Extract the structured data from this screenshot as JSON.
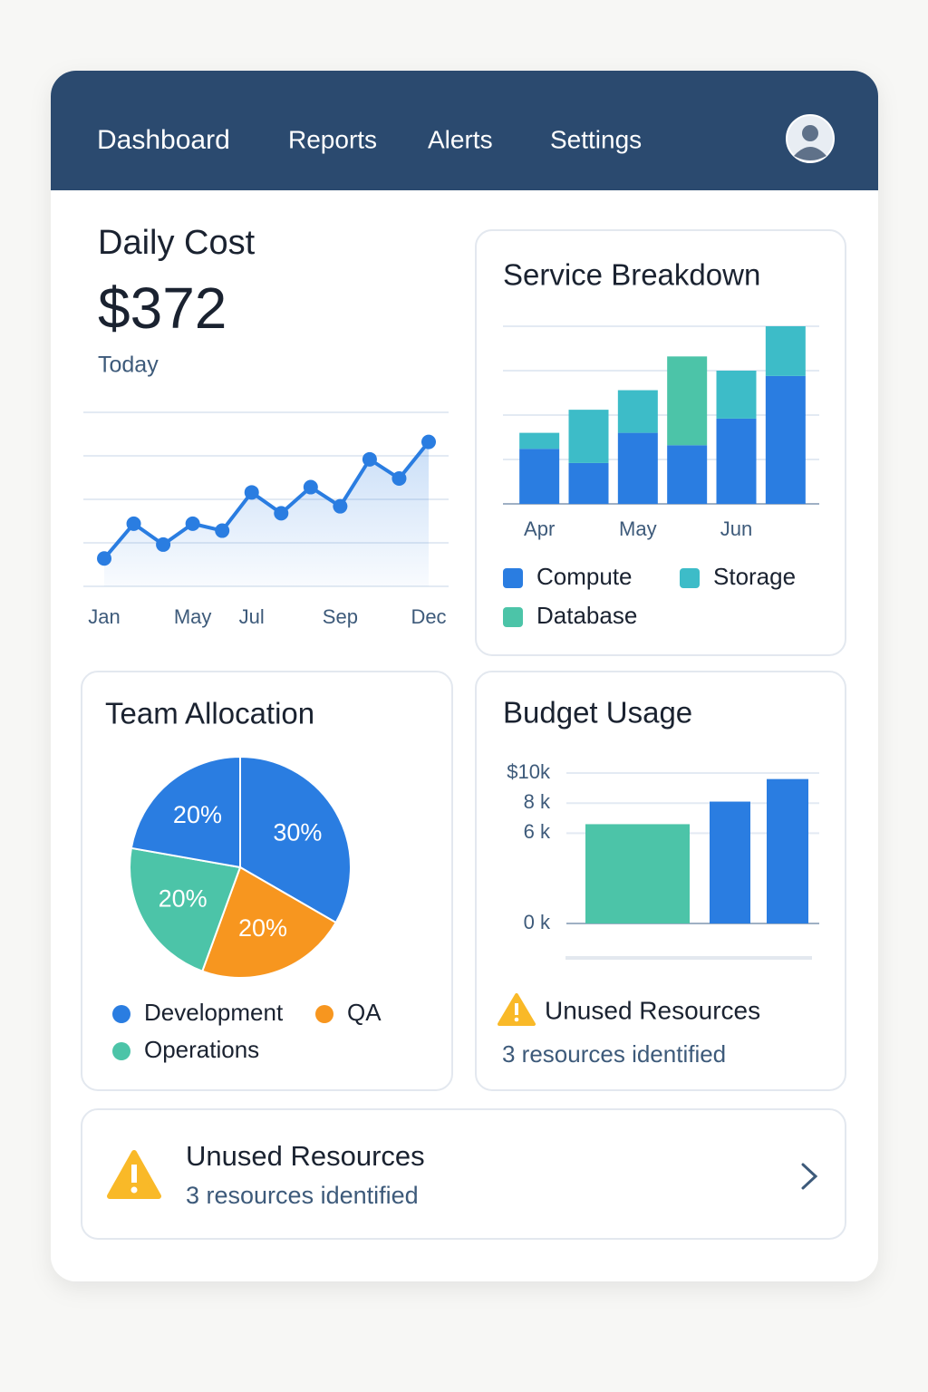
{
  "nav": {
    "items": [
      "Dashboard",
      "Reports",
      "Alerts",
      "Settings"
    ]
  },
  "daily_cost": {
    "amount": "$372",
    "period": "Today"
  },
  "chart_data": [
    {
      "type": "line",
      "title": "Daily Cost",
      "categories": [
        "Jan",
        null,
        null,
        "May",
        null,
        "Jul",
        null,
        null,
        "Sep",
        null,
        null,
        "Dec"
      ],
      "values": [
        16,
        36,
        24,
        36,
        32,
        54,
        42,
        57,
        46,
        73,
        62,
        83
      ],
      "color": "#2a7de1",
      "ylim": [
        0,
        100
      ],
      "yticks": [
        0,
        25,
        50,
        75,
        100
      ],
      "grid": true
    },
    {
      "type": "stacked_bar",
      "title": "Service Breakdown",
      "categories": [
        "Apr",
        null,
        "May",
        null,
        "Jun",
        null
      ],
      "series": [
        {
          "name": "Compute",
          "color": "#2a7de1",
          "values": [
            31,
            23,
            40,
            33,
            48,
            72
          ]
        },
        {
          "name": "Storage",
          "color": "#3dbcc8",
          "values": [
            9,
            30,
            24,
            0,
            27,
            28
          ]
        },
        {
          "name": "Database",
          "color": "#4cc4a8",
          "values": [
            0,
            0,
            0,
            50,
            0,
            0
          ]
        }
      ],
      "ylim": [
        0,
        100
      ],
      "yticks": [
        0,
        25,
        50,
        75,
        100
      ],
      "grid": true
    },
    {
      "type": "pie",
      "title": "Team Allocation",
      "categories": [
        "Development",
        "QA",
        "Operations",
        null
      ],
      "values": [
        30,
        20,
        20,
        20
      ],
      "value_labels": [
        "30%",
        "20%",
        "20%",
        "20%"
      ],
      "colors": [
        "#2a7de1",
        "#f7961f",
        "#4cc4a8",
        "#2a7de1"
      ]
    },
    {
      "type": "bar",
      "title": "Budget Usage",
      "categories": [
        null,
        null,
        null
      ],
      "values": [
        6600,
        8100,
        9600
      ],
      "colors": [
        "#4cc4a8",
        "#2a7de1",
        "#2a7de1"
      ],
      "ylim": [
        0,
        10000
      ],
      "yticks": [
        {
          "value": 10000,
          "label": "$10k"
        },
        {
          "value": 8000,
          "label": "8 k"
        },
        {
          "value": 6000,
          "label": "6 k"
        },
        {
          "value": 0,
          "label": "0 k"
        }
      ],
      "grid": true
    }
  ],
  "budget_note": {
    "title": "Unused Resources",
    "subtitle": "3 resources identified"
  },
  "alert": {
    "title": "Unused Resources",
    "subtitle": "3 resources identified"
  }
}
